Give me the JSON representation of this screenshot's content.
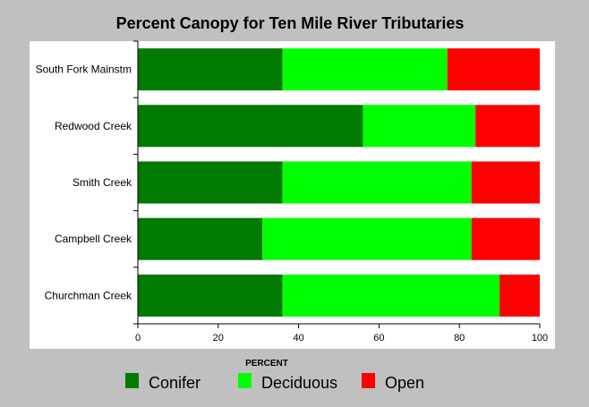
{
  "chart_data": {
    "type": "bar",
    "orientation": "horizontal",
    "stacked": true,
    "title": "Percent Canopy for Ten Mile River Tributaries",
    "xlabel": "PERCENT",
    "ylabel": "",
    "xlim": [
      0,
      100
    ],
    "xticks": [
      0,
      20,
      40,
      60,
      80,
      100
    ],
    "grid": false,
    "legend_position": "bottom",
    "categories": [
      "South Fork Mainstm",
      "Redwood Creek",
      "Smith Creek",
      "Campbell Creek",
      "Churchman Creek"
    ],
    "series": [
      {
        "name": "Conifer",
        "color": "#007a00",
        "values": [
          36,
          56,
          36,
          31,
          36
        ]
      },
      {
        "name": "Deciduous",
        "color": "#00ff00",
        "values": [
          41,
          28,
          47,
          52,
          54
        ]
      },
      {
        "name": "Open",
        "color": "#ff0000",
        "values": [
          23,
          16,
          17,
          17,
          10
        ]
      }
    ]
  }
}
